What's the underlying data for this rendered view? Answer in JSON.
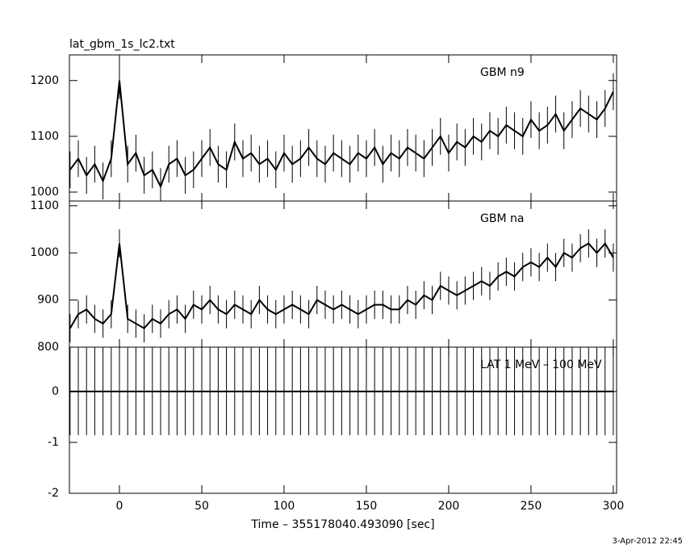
{
  "chart_data": {
    "type": "line",
    "title": "lat_gbm_1s_lc2.txt",
    "xlabel": "Time – 355178040.493090 [sec]",
    "footer": "3-Apr-2012 22:45",
    "color": "#000000",
    "xlim": [
      -30.4,
      302
    ],
    "xticks": [
      0,
      50,
      100,
      150,
      200,
      250,
      300
    ],
    "x": [
      -30,
      -25,
      -20,
      -15,
      -10,
      -5,
      0,
      5,
      10,
      15,
      20,
      25,
      30,
      35,
      40,
      45,
      50,
      55,
      60,
      65,
      70,
      75,
      80,
      85,
      90,
      95,
      100,
      105,
      110,
      115,
      120,
      125,
      130,
      135,
      140,
      145,
      150,
      155,
      160,
      165,
      170,
      175,
      180,
      185,
      190,
      195,
      200,
      205,
      210,
      215,
      220,
      225,
      230,
      235,
      240,
      245,
      250,
      255,
      260,
      265,
      270,
      275,
      280,
      285,
      290,
      295,
      300
    ],
    "panels": [
      {
        "label": "GBM n9",
        "ylim": [
          984,
          1246
        ],
        "yticks": [
          1000,
          1100,
          1200
        ],
        "error": 33,
        "values": [
          1040,
          1060,
          1030,
          1050,
          1020,
          1060,
          1200,
          1050,
          1070,
          1030,
          1040,
          1010,
          1050,
          1060,
          1030,
          1040,
          1060,
          1080,
          1050,
          1040,
          1090,
          1060,
          1070,
          1050,
          1060,
          1040,
          1070,
          1050,
          1060,
          1080,
          1060,
          1050,
          1070,
          1060,
          1050,
          1070,
          1060,
          1080,
          1050,
          1070,
          1060,
          1080,
          1070,
          1060,
          1080,
          1100,
          1070,
          1090,
          1080,
          1100,
          1090,
          1110,
          1100,
          1120,
          1110,
          1100,
          1130,
          1110,
          1120,
          1140,
          1110,
          1130,
          1150,
          1140,
          1130,
          1150,
          1180
        ]
      },
      {
        "label": "GBM na",
        "ylim": [
          800,
          1110
        ],
        "yticks": [
          800,
          900,
          1000,
          1100
        ],
        "error": 30,
        "values": [
          840,
          870,
          880,
          860,
          850,
          870,
          1020,
          860,
          850,
          840,
          860,
          850,
          870,
          880,
          860,
          890,
          880,
          900,
          880,
          870,
          890,
          880,
          870,
          900,
          880,
          870,
          880,
          890,
          880,
          870,
          900,
          890,
          880,
          890,
          880,
          870,
          880,
          890,
          890,
          880,
          880,
          900,
          890,
          910,
          900,
          930,
          920,
          910,
          920,
          930,
          940,
          930,
          950,
          960,
          950,
          970,
          980,
          970,
          990,
          970,
          1000,
          990,
          1010,
          1020,
          1000,
          1020,
          990
        ]
      },
      {
        "label": "LAT 1 MeV – 100 MeV",
        "ylim": [
          -2,
          0.87
        ],
        "yticks": [
          -2,
          -1,
          0
        ],
        "error": 0.86,
        "values": [
          0,
          0,
          0,
          0,
          0,
          0,
          0,
          0,
          0,
          0,
          0,
          0,
          0,
          0,
          0,
          0,
          0,
          0,
          0,
          0,
          0,
          0,
          0,
          0,
          0,
          0,
          0,
          0,
          0,
          0,
          0,
          0,
          0,
          0,
          0,
          0,
          0,
          0,
          0,
          0,
          0,
          0,
          0,
          0,
          0,
          0,
          0,
          0,
          0,
          0,
          0,
          0,
          0,
          0,
          0,
          0,
          0,
          0,
          0,
          0,
          0,
          0,
          0,
          0,
          0,
          0,
          0
        ]
      }
    ]
  }
}
